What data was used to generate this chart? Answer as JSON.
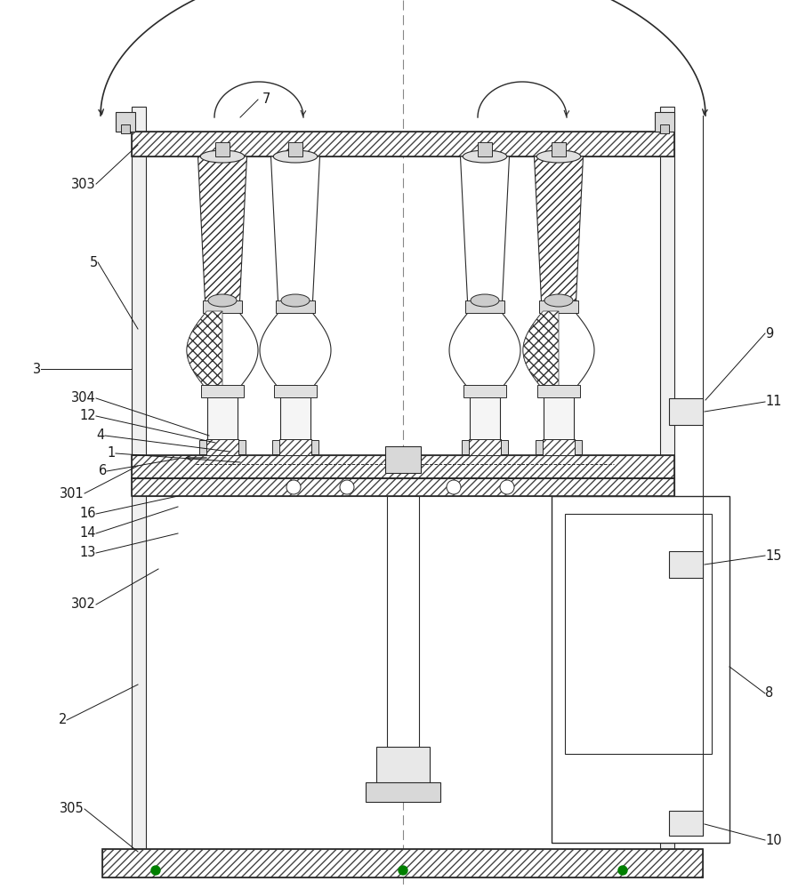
{
  "bg_color": "#ffffff",
  "line_color": "#2a2a2a",
  "hatch_color": "#444444",
  "label_color": "#1a1a1a",
  "label_fontsize": 10.5,
  "fig_w": 9.06,
  "fig_h": 10.0,
  "dpi": 100
}
